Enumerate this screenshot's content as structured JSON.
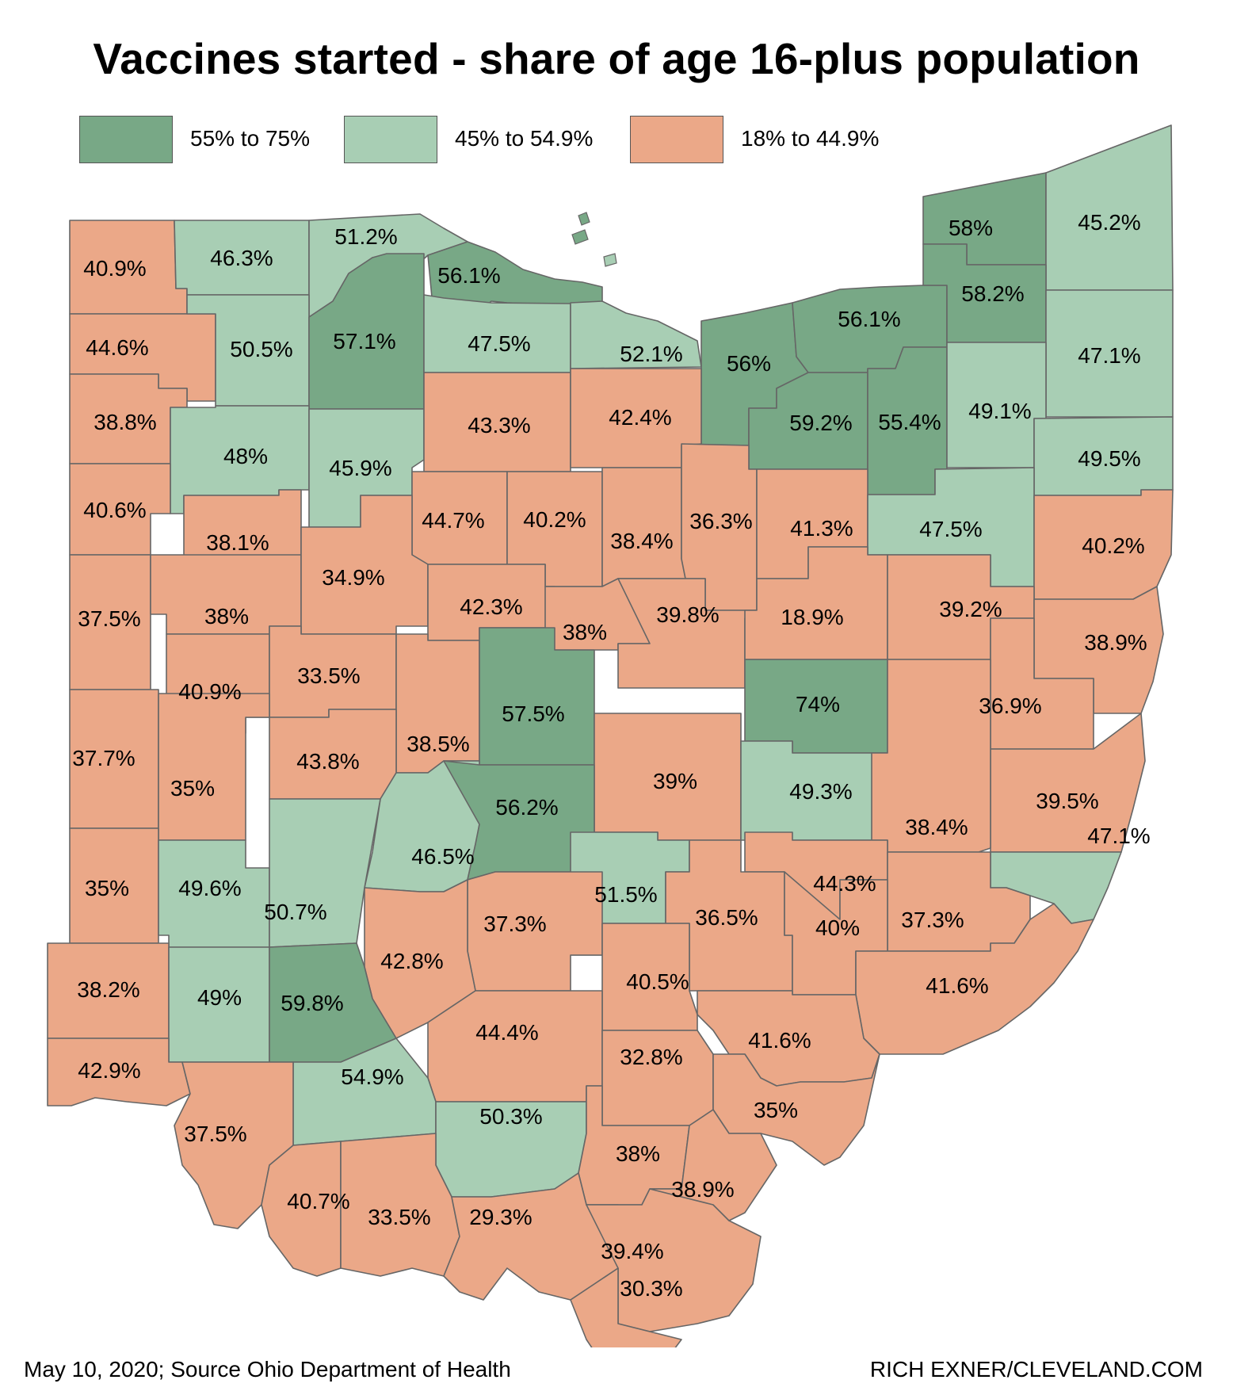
{
  "title": "Vaccines started - share of age 16-plus population",
  "legend": [
    {
      "label": "55% to 75%",
      "color": "#78a886"
    },
    {
      "label": "45% to 54.9%",
      "color": "#a8ceb4"
    },
    {
      "label": "18% to 44.9%",
      "color": "#eba888"
    }
  ],
  "footer": {
    "left": "May 10, 2020; Source Ohio Department of Health",
    "right": "RICH EXNER/CLEVELAND.COM"
  },
  "colors": {
    "high": "#78a886",
    "mid": "#a8ceb4",
    "low": "#eba888",
    "border": "#666666"
  },
  "counties": [
    {
      "label": "40.9%",
      "value": 40.9
    },
    {
      "label": "46.3%",
      "value": 46.3
    },
    {
      "label": "51.2%",
      "value": 51.2
    },
    {
      "label": "56.1%",
      "value": 56.1
    },
    {
      "label": "58%",
      "value": 58.0
    },
    {
      "label": "45.2%",
      "value": 45.2
    },
    {
      "label": "44.6%",
      "value": 44.6
    },
    {
      "label": "50.5%",
      "value": 50.5
    },
    {
      "label": "57.1%",
      "value": 57.1
    },
    {
      "label": "47.5%",
      "value": 47.5
    },
    {
      "label": "52.1%",
      "value": 52.1
    },
    {
      "label": "56%",
      "value": 56.0
    },
    {
      "label": "56.1%",
      "value": 56.1
    },
    {
      "label": "58.2%",
      "value": 58.2
    },
    {
      "label": "47.1%",
      "value": 47.1
    },
    {
      "label": "38.8%",
      "value": 38.8
    },
    {
      "label": "48%",
      "value": 48.0
    },
    {
      "label": "45.9%",
      "value": 45.9
    },
    {
      "label": "43.3%",
      "value": 43.3
    },
    {
      "label": "42.4%",
      "value": 42.4
    },
    {
      "label": "59.2%",
      "value": 59.2
    },
    {
      "label": "55.4%",
      "value": 55.4
    },
    {
      "label": "49.1%",
      "value": 49.1
    },
    {
      "label": "49.5%",
      "value": 49.5
    },
    {
      "label": "40.6%",
      "value": 40.6
    },
    {
      "label": "38.1%",
      "value": 38.1
    },
    {
      "label": "44.7%",
      "value": 44.7
    },
    {
      "label": "40.2%",
      "value": 40.2
    },
    {
      "label": "38.4%",
      "value": 38.4
    },
    {
      "label": "36.3%",
      "value": 36.3
    },
    {
      "label": "41.3%",
      "value": 41.3
    },
    {
      "label": "47.5%",
      "value": 47.5
    },
    {
      "label": "40.2%",
      "value": 40.2
    },
    {
      "label": "37.5%",
      "value": 37.5
    },
    {
      "label": "38%",
      "value": 38.0
    },
    {
      "label": "34.9%",
      "value": 34.9
    },
    {
      "label": "42.3%",
      "value": 42.3
    },
    {
      "label": "38%",
      "value": 38.0
    },
    {
      "label": "39.8%",
      "value": 39.8
    },
    {
      "label": "18.9%",
      "value": 18.9
    },
    {
      "label": "39.2%",
      "value": 39.2
    },
    {
      "label": "38.9%",
      "value": 38.9
    },
    {
      "label": "40.9%",
      "value": 40.9
    },
    {
      "label": "33.5%",
      "value": 33.5
    },
    {
      "label": "38.5%",
      "value": 38.5
    },
    {
      "label": "57.5%",
      "value": 57.5
    },
    {
      "label": "74%",
      "value": 74.0
    },
    {
      "label": "36.9%",
      "value": 36.9
    },
    {
      "label": "37.7%",
      "value": 37.7
    },
    {
      "label": "35%",
      "value": 35.0
    },
    {
      "label": "43.8%",
      "value": 43.8
    },
    {
      "label": "39%",
      "value": 39.0
    },
    {
      "label": "49.3%",
      "value": 49.3
    },
    {
      "label": "39.5%",
      "value": 39.5
    },
    {
      "label": "38.4%",
      "value": 38.4
    },
    {
      "label": "47.1%",
      "value": 47.1
    },
    {
      "label": "46.5%",
      "value": 46.5
    },
    {
      "label": "56.2%",
      "value": 56.2
    },
    {
      "label": "44.3%",
      "value": 44.3
    },
    {
      "label": "35%",
      "value": 35.0
    },
    {
      "label": "49.6%",
      "value": 49.6
    },
    {
      "label": "50.7%",
      "value": 50.7
    },
    {
      "label": "51.5%",
      "value": 51.5
    },
    {
      "label": "36.5%",
      "value": 36.5
    },
    {
      "label": "37.3%",
      "value": 37.3
    },
    {
      "label": "40%",
      "value": 40.0
    },
    {
      "label": "37.3%",
      "value": 37.3
    },
    {
      "label": "42.8%",
      "value": 42.8
    },
    {
      "label": "38.2%",
      "value": 38.2
    },
    {
      "label": "49%",
      "value": 49.0
    },
    {
      "label": "59.8%",
      "value": 59.8
    },
    {
      "label": "40.5%",
      "value": 40.5
    },
    {
      "label": "41.6%",
      "value": 41.6
    },
    {
      "label": "44.4%",
      "value": 44.4
    },
    {
      "label": "41.6%",
      "value": 41.6
    },
    {
      "label": "42.9%",
      "value": 42.9
    },
    {
      "label": "54.9%",
      "value": 54.9
    },
    {
      "label": "32.8%",
      "value": 32.8
    },
    {
      "label": "35%",
      "value": 35.0
    },
    {
      "label": "37.5%",
      "value": 37.5
    },
    {
      "label": "50.3%",
      "value": 50.3
    },
    {
      "label": "38%",
      "value": 38.0
    },
    {
      "label": "40.7%",
      "value": 40.7
    },
    {
      "label": "33.5%",
      "value": 33.5
    },
    {
      "label": "29.3%",
      "value": 29.3
    },
    {
      "label": "39.4%",
      "value": 39.4
    },
    {
      "label": "38.9%",
      "value": 38.9
    },
    {
      "label": "30.3%",
      "value": 30.3
    }
  ]
}
